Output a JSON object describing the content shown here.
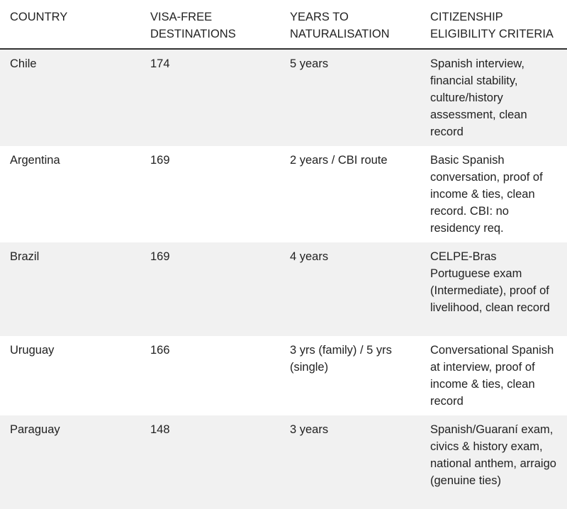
{
  "table": {
    "header": [
      "COUNTRY",
      "VISA-FREE DESTINATIONS",
      "YEARS TO NATURALISATION",
      "CITIZENSHIP ELIGIBILITY CRITERIA"
    ],
    "rows": [
      [
        "Chile",
        174,
        "5 years",
        "Spanish interview, financial stability, culture/history assessment, clean record"
      ],
      [
        "Argentina",
        169,
        "2 years / CBI route",
        "Basic Spanish conversation, proof of income & ties, clean record. CBI: no residency req."
      ],
      [
        "Brazil",
        169,
        "4 years",
        "CELPE-Bras Portuguese exam (Intermediate), proof of livelihood, clean record"
      ],
      [
        "Uruguay",
        166,
        "3 yrs (family) / 5 yrs (single)",
        "Conversational Spanish at interview, proof of income & ties, clean record"
      ],
      [
        "Paraguay",
        148,
        "3 years",
        "Spanish/Guaraní exam, civics & history exam, national anthem, arraigo (genuine ties)"
      ]
    ]
  }
}
